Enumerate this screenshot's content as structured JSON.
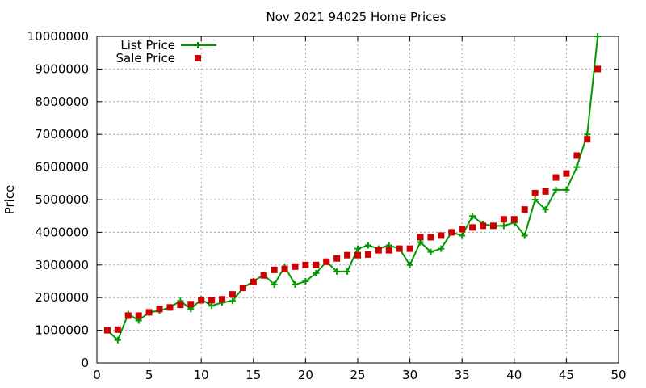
{
  "chart_data": {
    "type": "line",
    "title": "Nov 2021 94025 Home Prices",
    "xlabel": "",
    "ylabel": "Price",
    "xlim": [
      0,
      50
    ],
    "ylim": [
      0,
      10000000
    ],
    "x_ticks": [
      "0",
      "5",
      "10",
      "15",
      "20",
      "25",
      "30",
      "35",
      "40",
      "45",
      "50"
    ],
    "y_ticks": [
      "0",
      "1000000",
      "2000000",
      "3000000",
      "4000000",
      "5000000",
      "6000000",
      "7000000",
      "8000000",
      "9000000",
      "10000000"
    ],
    "grid": true,
    "legend_position": "top-left",
    "series": [
      {
        "name": "List Price",
        "style": "line-points",
        "color": "#009900",
        "x": [
          1,
          2,
          3,
          4,
          5,
          6,
          7,
          8,
          9,
          10,
          11,
          12,
          13,
          14,
          15,
          16,
          17,
          18,
          19,
          20,
          21,
          22,
          23,
          24,
          25,
          26,
          27,
          28,
          29,
          30,
          31,
          32,
          33,
          34,
          35,
          36,
          37,
          38,
          39,
          40,
          41,
          42,
          43,
          44,
          45,
          46,
          47,
          48
        ],
        "values": [
          1000000,
          700000,
          1500000,
          1300000,
          1550000,
          1600000,
          1700000,
          1900000,
          1650000,
          1950000,
          1750000,
          1850000,
          1900000,
          2300000,
          2500000,
          2700000,
          2400000,
          2950000,
          2400000,
          2500000,
          2750000,
          3100000,
          2800000,
          2800000,
          3500000,
          3600000,
          3500000,
          3600000,
          3500000,
          3000000,
          3700000,
          3400000,
          3500000,
          4000000,
          3900000,
          4500000,
          4250000,
          4200000,
          4200000,
          4300000,
          3900000,
          5000000,
          4700000,
          5300000,
          5300000,
          6000000,
          7000000,
          10000000
        ]
      },
      {
        "name": "Sale Price",
        "style": "points",
        "color": "#cc0000",
        "x": [
          1,
          2,
          3,
          4,
          5,
          6,
          7,
          8,
          9,
          10,
          11,
          12,
          13,
          14,
          15,
          16,
          17,
          18,
          19,
          20,
          21,
          22,
          23,
          24,
          25,
          26,
          27,
          28,
          29,
          30,
          31,
          32,
          33,
          34,
          35,
          36,
          37,
          38,
          39,
          40,
          41,
          42,
          43,
          44,
          45,
          46,
          47,
          48
        ],
        "values": [
          1000000,
          1020000,
          1450000,
          1450000,
          1550000,
          1650000,
          1700000,
          1780000,
          1800000,
          1920000,
          1920000,
          1950000,
          2100000,
          2300000,
          2480000,
          2680000,
          2850000,
          2880000,
          2950000,
          3000000,
          3000000,
          3100000,
          3200000,
          3300000,
          3300000,
          3320000,
          3450000,
          3450000,
          3500000,
          3500000,
          3850000,
          3850000,
          3900000,
          4000000,
          4100000,
          4150000,
          4200000,
          4200000,
          4400000,
          4400000,
          4700000,
          5200000,
          5250000,
          5680000,
          5800000,
          6350000,
          6850000,
          9000000
        ]
      }
    ]
  }
}
